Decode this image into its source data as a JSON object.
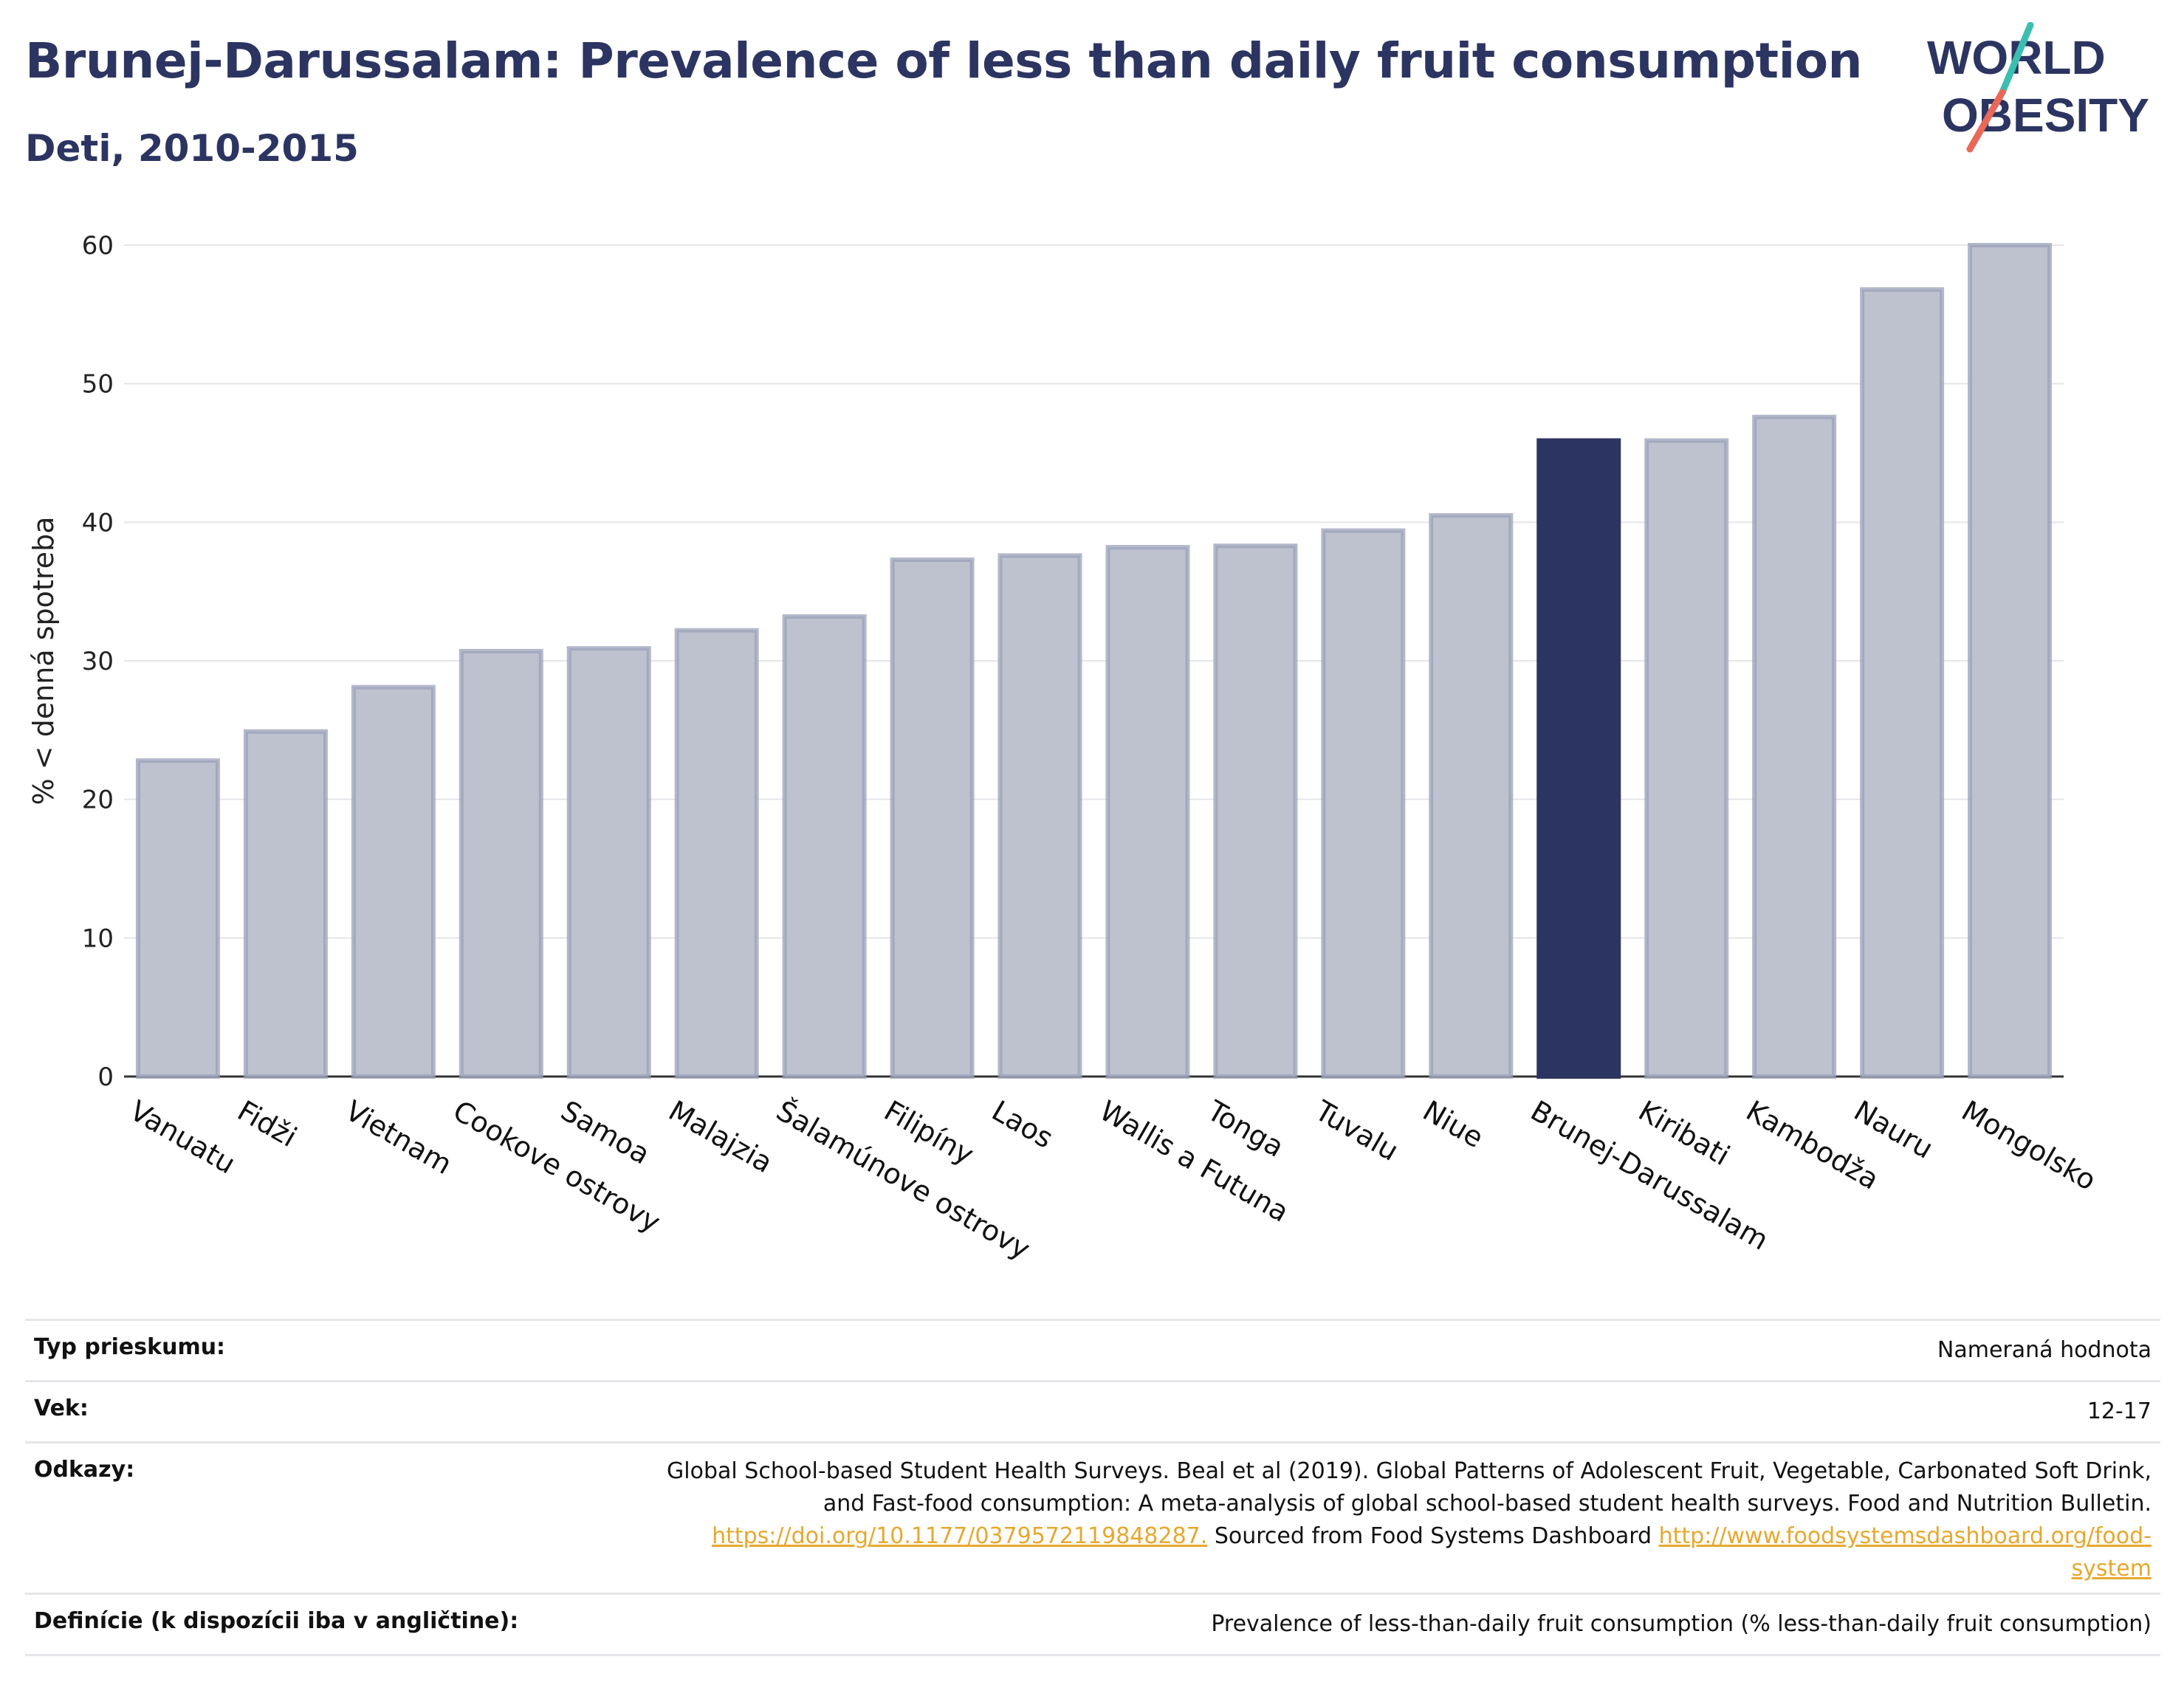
{
  "header": {
    "title": "Brunej-Darussalam: Prevalence of less than daily fruit consumption",
    "subtitle": "Deti, 2010-2015"
  },
  "logo": {
    "line1": "WORLD",
    "line2": "OBESITY",
    "accent_colors": [
      "#3bbfb1",
      "#e8685a"
    ]
  },
  "colors": {
    "bar": "#bec2cf",
    "bar_edge": "#9aa0b8",
    "highlight": "#2c3561",
    "title": "#2c3561",
    "link": "#e6a82d"
  },
  "chart_data": {
    "type": "bar",
    "ylabel": "% < denná spotreba",
    "ylim": [
      0,
      60
    ],
    "yticks": [
      0,
      10,
      20,
      30,
      40,
      50,
      60
    ],
    "grid": true,
    "highlight_category": "Brunej-Darussalam",
    "categories": [
      "Vanuatu",
      "Fidži",
      "Vietnam",
      "Cookove ostrovy",
      "Samoa",
      "Malajzia",
      "Šalamúnove ostrovy",
      "Filipíny",
      "Laos",
      "Wallis a Futuna",
      "Tonga",
      "Tuvalu",
      "Niue",
      "Brunej-Darussalam",
      "Kiribati",
      "Kambodža",
      "Nauru",
      "Mongolsko"
    ],
    "values": [
      22.8,
      24.9,
      28.1,
      30.7,
      30.9,
      32.2,
      33.2,
      37.3,
      37.6,
      38.2,
      38.3,
      39.4,
      40.5,
      45.9,
      45.9,
      47.6,
      56.8,
      60.0
    ]
  },
  "meta": {
    "survey_type_label": "Typ prieskumu:",
    "survey_type_value": "Nameraná hodnota",
    "age_label": "Vek:",
    "age_value": "12-17",
    "refs_label": "Odkazy:",
    "refs_text_1": "Global School-based Student Health Surveys. Beal et al (2019). Global Patterns of Adolescent Fruit, Vegetable, Carbonated Soft Drink,",
    "refs_text_2": "and Fast-food consumption: A meta-analysis of global school-based student health surveys. Food and Nutrition Bulletin.",
    "refs_link_1": "https://doi.org/10.1177/0379572119848287.",
    "refs_text_3": " Sourced from Food Systems Dashboard ",
    "refs_link_2a": "http://www.foodsystemsdashboard.org/food-",
    "refs_link_2b": "system",
    "definition_label": "Definície (k dispozícii iba v angličtine):",
    "definition_value": "Prevalence of less-than-daily fruit consumption (% less-than-daily fruit consumption)"
  }
}
